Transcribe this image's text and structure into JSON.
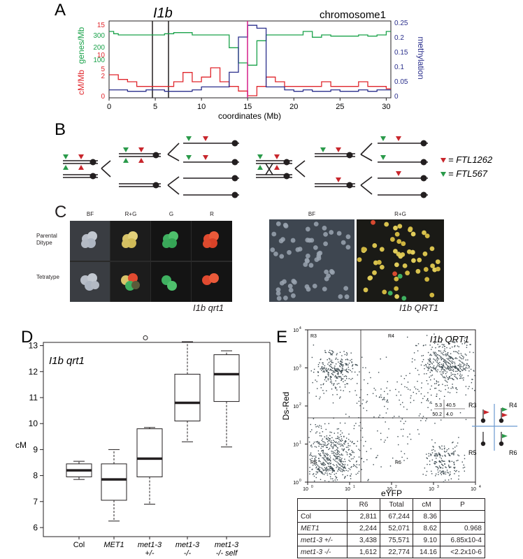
{
  "panels": {
    "a": "A",
    "b": "B",
    "c": "C",
    "d": "D",
    "e": "E"
  },
  "panelA": {
    "locus": "I1b",
    "chromosome": "chromosome1",
    "xlabel": "coordinates (Mb)",
    "ylabel_genes": "genes/Mb",
    "ylabel_cm": "cM/Mb",
    "ylabel_meth": "methylation",
    "x_ticks": [
      "0",
      "5",
      "10",
      "15",
      "20",
      "25",
      "30"
    ],
    "genes_ticks": [
      "300",
      "200",
      "100"
    ],
    "cm_ticks": [
      "15",
      "10",
      "5",
      "2",
      "0"
    ],
    "meth_ticks": [
      "0.25",
      "0.2",
      "0.15",
      "0.1",
      "0.05",
      "0"
    ],
    "colors": {
      "genes": "#1aa24a",
      "cm": "#e0262c",
      "meth": "#2a2f8c",
      "marker": "#d61f8a",
      "box": "#231f20"
    }
  },
  "panelB": {
    "legend": [
      {
        "label": "= FTL1262",
        "color": "#c8262c"
      },
      {
        "label": "= FTL567",
        "color": "#2a9a4a"
      }
    ]
  },
  "panelC": {
    "cols_left": [
      "BF",
      "R+G",
      "G",
      "R"
    ],
    "rows_left": [
      "Parental\nDitype",
      "Tetratype"
    ],
    "caption_left": "I1b qrt1",
    "cols_right": [
      "BF",
      "R+G"
    ],
    "caption_right": "I1b QRT1"
  },
  "panelD": {
    "title": "I1b qrt1",
    "ylabel": "cM",
    "y_ticks": [
      "13",
      "12",
      "11",
      "10",
      "9",
      "8",
      "7",
      "6"
    ],
    "categories": [
      "Col",
      "MET1",
      "met1-3 +/-",
      "met1-3 -/-",
      "met1-3 -/- self"
    ],
    "cat_lines": [
      [
        "Col"
      ],
      [
        "MET1"
      ],
      [
        "met1-3",
        "+/-"
      ],
      [
        "met1-3",
        "-/-"
      ],
      [
        "met1-3",
        "-/- self"
      ]
    ]
  },
  "panelE": {
    "title": "I1b QRT1",
    "xlabel": "eYFP",
    "ylabel": "Ds-Red",
    "regions": [
      "R3",
      "R4",
      "R5",
      "R6"
    ],
    "quad": {
      "ul": "5.3",
      "ur": "40.5",
      "ll": "50.2",
      "lr": "4.0"
    },
    "x_tick_exp": [
      "0",
      "1",
      "2",
      "3",
      "4"
    ],
    "y_tick_exp": [
      "0",
      "1",
      "2",
      "3",
      "4"
    ],
    "tick_base": "10",
    "table": {
      "headers": [
        "",
        "R6",
        "Total",
        "cM",
        "P"
      ],
      "rows": [
        {
          "label": "Col",
          "italic": false,
          "r6": "2,811",
          "total": "67,244",
          "cm": "8.36",
          "p": ""
        },
        {
          "label": "MET1",
          "italic": true,
          "r6": "2,244",
          "total": "52,071",
          "cm": "8.62",
          "p": "0.968"
        },
        {
          "label": "met1-3 +/-",
          "italic": true,
          "r6": "3,438",
          "total": "75,571",
          "cm": "9.10",
          "p": "6.85x10-4"
        },
        {
          "label": "met1-3 -/-",
          "italic": true,
          "r6": "1,612",
          "total": "22,774",
          "cm": "14.16",
          "p": "<2.2x10-6"
        }
      ]
    }
  },
  "chart_data": [
    {
      "type": "box",
      "title": "I1b qrt1",
      "ylabel": "cM",
      "ylim": [
        6,
        13.5
      ],
      "categories": [
        "Col",
        "MET1",
        "met1-3 +/-",
        "met1-3 -/-",
        "met1-3 -/- self"
      ],
      "boxes": [
        {
          "min": 7.85,
          "q1": 7.95,
          "median": 8.2,
          "q3": 8.45,
          "max": 8.55,
          "outliers": []
        },
        {
          "min": 6.25,
          "q1": 7.05,
          "median": 7.85,
          "q3": 8.45,
          "max": 9.0,
          "outliers": []
        },
        {
          "min": 6.9,
          "q1": 7.95,
          "median": 8.65,
          "q3": 9.8,
          "max": 9.85,
          "outliers": [
            13.3
          ]
        },
        {
          "min": 9.3,
          "q1": 10.1,
          "median": 10.8,
          "q3": 11.9,
          "max": 13.15,
          "outliers": []
        },
        {
          "min": 9.1,
          "q1": 10.85,
          "median": 11.9,
          "q3": 12.65,
          "max": 12.8,
          "outliers": []
        }
      ]
    },
    {
      "type": "line",
      "title": "chromosome1",
      "xlabel": "coordinates (Mb)",
      "xlim": [
        0,
        30.5
      ],
      "series": [
        {
          "name": "genes/Mb",
          "x": [
            0,
            0.5,
            1,
            2,
            3,
            4,
            5,
            6,
            7,
            8,
            9,
            10,
            11,
            12,
            13,
            14,
            15,
            16,
            17,
            18,
            19,
            20,
            21,
            22,
            23,
            24,
            25,
            26,
            27,
            28,
            29,
            30
          ],
          "values": [
            330,
            310,
            300,
            300,
            300,
            300,
            300,
            310,
            320,
            320,
            300,
            300,
            300,
            300,
            190,
            60,
            40,
            250,
            300,
            300,
            300,
            300,
            330,
            280,
            300,
            290,
            290,
            290,
            300,
            290,
            300,
            330
          ]
        },
        {
          "name": "cM/Mb",
          "x": [
            0,
            1,
            2,
            3,
            4,
            5,
            6,
            7,
            8,
            9,
            10,
            11,
            12,
            13,
            14,
            15,
            16,
            17,
            18,
            19,
            20,
            21,
            22,
            23,
            24,
            25,
            26,
            27,
            28,
            29,
            30
          ],
          "values": [
            4.5,
            3.5,
            3,
            2,
            2,
            2,
            2,
            3,
            5,
            3,
            4,
            6,
            3,
            2,
            1,
            0,
            2,
            4,
            3,
            2,
            2,
            2,
            2,
            3,
            2,
            2,
            2,
            3,
            2,
            2,
            1.5
          ]
        },
        {
          "name": "methylation",
          "x": [
            0,
            1,
            2,
            3,
            4,
            5,
            6,
            7,
            8,
            9,
            10,
            11,
            12,
            13,
            14,
            15,
            16,
            17,
            18,
            19,
            20,
            21,
            22,
            23,
            24,
            25,
            26,
            27,
            28,
            29,
            30
          ],
          "values": [
            0.02,
            0.02,
            0.015,
            0.015,
            0.02,
            0.02,
            0.015,
            0.015,
            0.015,
            0.02,
            0.03,
            0.03,
            0.03,
            0.08,
            0.2,
            0.24,
            0.23,
            0.03,
            0.03,
            0.02,
            0.015,
            0.02,
            0.015,
            0.015,
            0.02,
            0.015,
            0.015,
            0.02,
            0.015,
            0.02,
            0.02
          ]
        }
      ]
    }
  ]
}
